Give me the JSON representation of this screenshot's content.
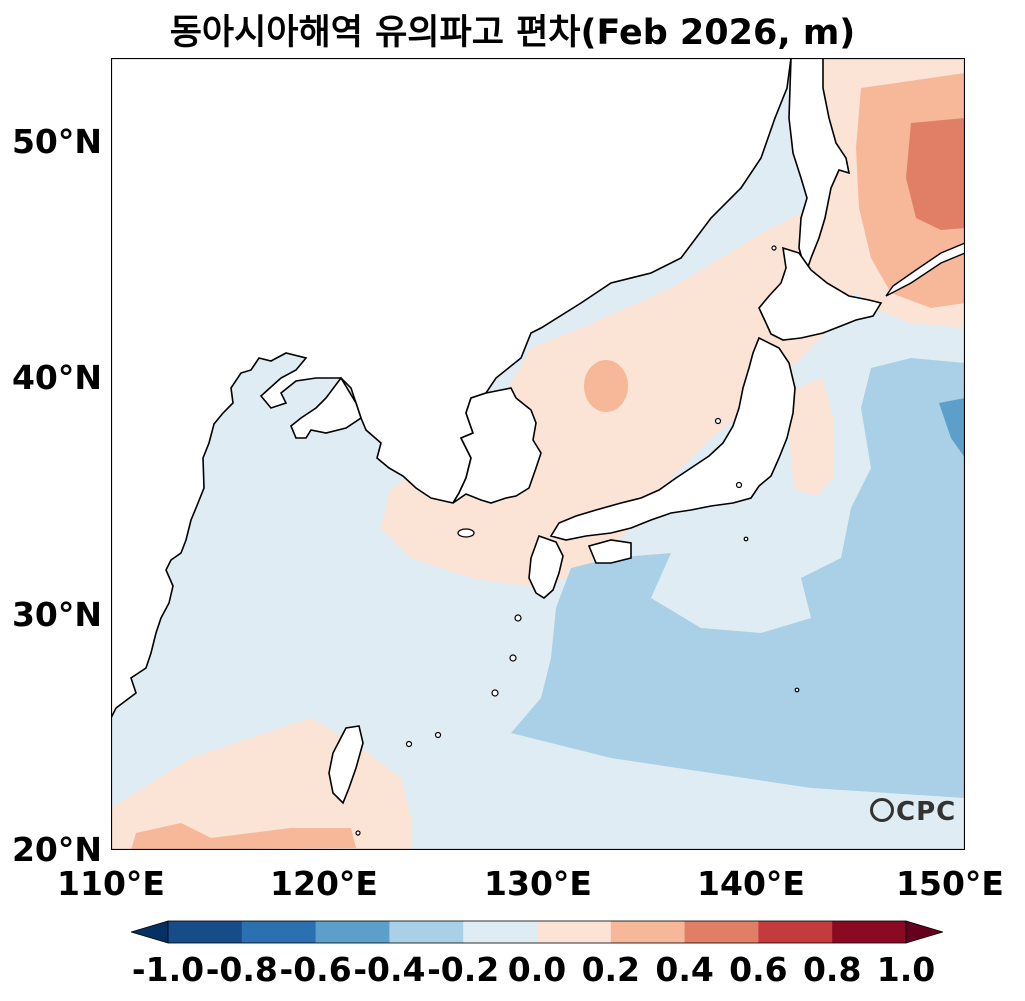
{
  "title": "동아시아해역 유의파고 편차(Feb 2026, m)",
  "lat_labels": [
    "50°N",
    "40°N",
    "30°N",
    "20°N"
  ],
  "lon_labels": [
    "110°E",
    "120°E",
    "130°E",
    "140°E",
    "150°E"
  ],
  "colorbar": {
    "labels": [
      "-1.0",
      "-0.8",
      "-0.6",
      "-0.4",
      "-0.2",
      "0.0",
      "0.2",
      "0.4",
      "0.6",
      "0.8",
      "1.0"
    ],
    "colors": [
      "#053061",
      "#164c88",
      "#2b70b0",
      "#5c9fcb",
      "#a9d0e6",
      "#e0ecf3",
      "#fbe3d6",
      "#f7b799",
      "#e17e66",
      "#c43b3d",
      "#8a0a24",
      "#67001f"
    ]
  },
  "logo_text": "CPC",
  "domain": {
    "lon": [
      110,
      150
    ],
    "lat": [
      20,
      53.5
    ]
  }
}
